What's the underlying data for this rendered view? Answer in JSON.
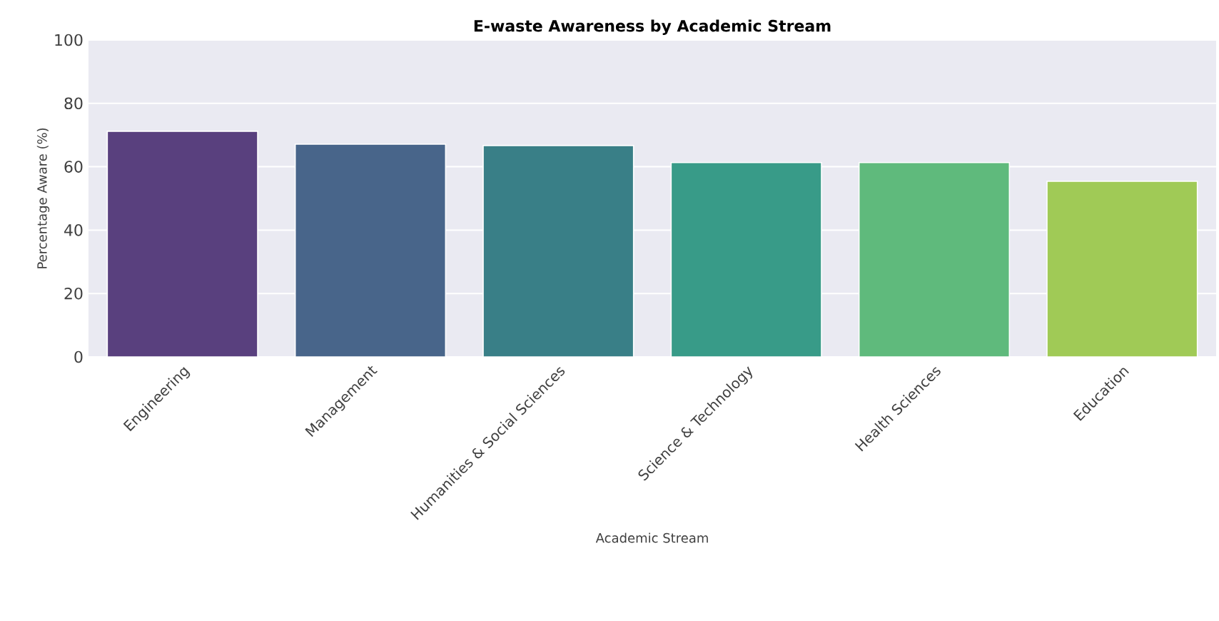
{
  "chart_data": {
    "type": "bar",
    "title": "E-waste Awareness by Academic Stream",
    "xlabel": "Academic Stream",
    "ylabel": "Percentage Aware (%)",
    "categories": [
      "Engineering",
      "Management",
      "Humanities & Social Sciences",
      "Science & Technology",
      "Health Sciences",
      "Education"
    ],
    "values": [
      71.2,
      67.1,
      66.7,
      61.3,
      61.3,
      55.4
    ],
    "colors": [
      "#59407e",
      "#48658a",
      "#397f87",
      "#389b88",
      "#5fba7c",
      "#a0ca56"
    ],
    "ylim": [
      0,
      100
    ],
    "yticks": [
      0,
      20,
      40,
      60,
      80,
      100
    ],
    "grid": "y"
  }
}
